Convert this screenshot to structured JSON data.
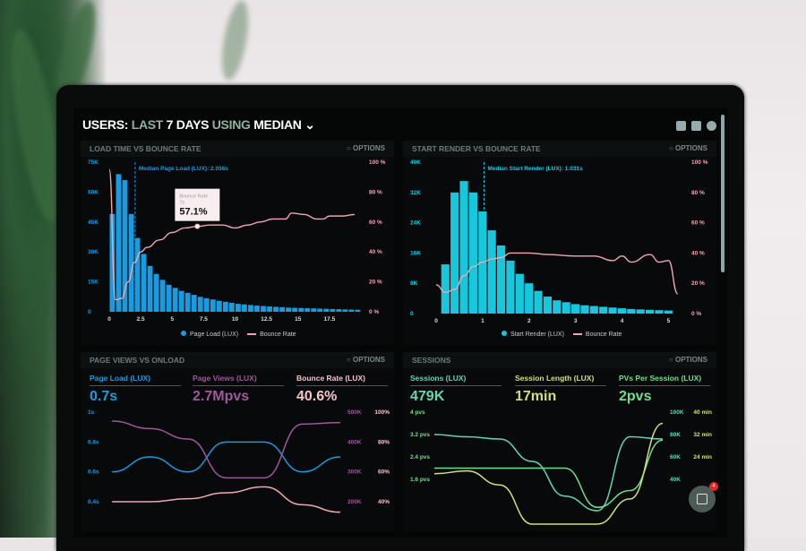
{
  "header": {
    "users": "USERS:",
    "last": "LAST",
    "days": "7 DAYS",
    "using": "USING",
    "median": "MEDIAN",
    "icons": [
      "monitor-icon",
      "chart-icon",
      "help-icon"
    ]
  },
  "options_label": "OPTIONS",
  "colors": {
    "blue": "#1a9be0",
    "cyan": "#17c8dc",
    "pink": "#f1a6b4",
    "purple": "#a0579c",
    "teal": "#63d6b4",
    "green": "#6ee08d",
    "yellow": "#cfe07a"
  },
  "chat": {
    "badge": "4"
  },
  "chart_data": [
    {
      "type": "bar",
      "title": "LOAD TIME VS BOUNCE RATE",
      "annotation": "Median Page Load (LUX): 2.056s",
      "median": 2.056,
      "tooltip": {
        "title": "Bounce Rate",
        "x": "7s",
        "value": "57.1%"
      },
      "xticks": [
        "0",
        "2.5",
        "5",
        "7.5",
        "10",
        "12.5",
        "15",
        "17.5"
      ],
      "xlim": [
        0,
        20
      ],
      "yticks_left": [
        "0",
        "15K",
        "30K",
        "45K",
        "60K",
        "75K"
      ],
      "ylim_left": [
        0,
        75
      ],
      "yticks_right": [
        "0 %",
        "20 %",
        "40 %",
        "60 %",
        "80 %",
        "100 %"
      ],
      "ylim_right": [
        0,
        100
      ],
      "legend": [
        "Page Load (LUX)",
        "Bounce Rate"
      ],
      "bin": 0.5,
      "bars": [
        49,
        69,
        66,
        49,
        37,
        29,
        23,
        19,
        16,
        13.5,
        12,
        10.5,
        9.5,
        8.5,
        7.5,
        6.8,
        6.2,
        5.5,
        5,
        4.5,
        4,
        3.7,
        3.4,
        3.1,
        2.9,
        2.7,
        2.5,
        2.3,
        2.1,
        2,
        1.9,
        1.8,
        1.7,
        1.6,
        1.5,
        1.4,
        1.3,
        1.2,
        1.1,
        1.0
      ],
      "line": [
        [
          0,
          95
        ],
        [
          0.5,
          8
        ],
        [
          1,
          9
        ],
        [
          1.5,
          20
        ],
        [
          2,
          33
        ],
        [
          2.5,
          40
        ],
        [
          3,
          43
        ],
        [
          4,
          48
        ],
        [
          5,
          53
        ],
        [
          6,
          56
        ],
        [
          7,
          57.1
        ],
        [
          8,
          58
        ],
        [
          9,
          58
        ],
        [
          10,
          56
        ],
        [
          11,
          58
        ],
        [
          12,
          60
        ],
        [
          13,
          62
        ],
        [
          14,
          62
        ],
        [
          14.5,
          66
        ],
        [
          15.5,
          65
        ],
        [
          16.5,
          62
        ],
        [
          17,
          62
        ],
        [
          17.5,
          64
        ],
        [
          18.5,
          64
        ],
        [
          19.5,
          65
        ]
      ]
    },
    {
      "type": "bar",
      "title": "START RENDER VS BOUNCE RATE",
      "annotation": "Median Start Render (LUX): 1.031s",
      "median": 1.031,
      "xticks": [
        "0",
        "1",
        "2",
        "3",
        "4",
        "5"
      ],
      "xlim": [
        0,
        5.3
      ],
      "yticks_left": [
        "0",
        "8K",
        "16K",
        "24K",
        "32K",
        "40K"
      ],
      "ylim_left": [
        0,
        40
      ],
      "yticks_right": [
        "0 %",
        "20 %",
        "40 %",
        "60 %",
        "80 %",
        "100 %"
      ],
      "ylim_right": [
        0,
        100
      ],
      "legend": [
        "Start Render (LUX)",
        "Bounce Rate"
      ],
      "bin": 0.2,
      "bars": [
        13,
        32,
        35,
        32,
        27,
        22,
        18,
        14,
        10.5,
        8,
        6,
        4.5,
        3.5,
        3,
        2.5,
        2.2,
        2,
        1.8,
        1.6,
        1.4,
        1.2,
        1.1,
        1,
        0.9,
        0.8
      ],
      "line": [
        [
          0,
          19
        ],
        [
          0.2,
          14
        ],
        [
          0.4,
          16
        ],
        [
          0.6,
          25
        ],
        [
          0.8,
          31
        ],
        [
          1,
          34
        ],
        [
          1.2,
          36
        ],
        [
          1.4,
          37
        ],
        [
          1.6,
          40
        ],
        [
          2,
          40
        ],
        [
          2.4,
          39
        ],
        [
          3,
          38
        ],
        [
          3.4,
          38
        ],
        [
          3.8,
          35
        ],
        [
          4,
          38
        ],
        [
          4.2,
          34
        ],
        [
          4.6,
          39
        ],
        [
          4.8,
          34
        ],
        [
          5,
          35
        ],
        [
          5.2,
          13
        ]
      ]
    },
    {
      "type": "line",
      "title": "PAGE VIEWS VS ONLOAD",
      "kpis": [
        {
          "label": "Page Load (LUX)",
          "value": "0.7s"
        },
        {
          "label": "Page Views (LUX)",
          "value": "2.7Mpvs"
        },
        {
          "label": "Bounce Rate (LUX)",
          "value": "40.6%"
        }
      ],
      "yticks_left": [
        "0.4s",
        "0.6s",
        "0.8s",
        "1s"
      ],
      "ylim_left": [
        0.4,
        1
      ],
      "yticks_right1": [
        "200K",
        "300K",
        "400K",
        "500K"
      ],
      "ylim_right1": [
        200,
        500
      ],
      "yticks_right2": [
        "40%",
        "60%",
        "80%",
        "100%"
      ],
      "ylim_right2": [
        40,
        100
      ],
      "series": [
        {
          "axis": "left",
          "values": [
            0.6,
            0.7,
            0.6,
            0.8,
            0.8,
            0.6,
            0.7
          ]
        },
        {
          "axis": "right1",
          "values": [
            470,
            445,
            410,
            280,
            280,
            460,
            465
          ]
        },
        {
          "axis": "right2",
          "values": [
            40,
            40,
            42,
            46,
            50,
            38,
            33
          ]
        }
      ]
    },
    {
      "type": "line",
      "title": "SESSIONS",
      "kpis": [
        {
          "label": "Sessions (LUX)",
          "value": "479K"
        },
        {
          "label": "Session Length (LUX)",
          "value": "17min"
        },
        {
          "label": "PVs Per Session (LUX)",
          "value": "2pvs"
        }
      ],
      "yticks_left": [
        "1.6 pvs",
        "2.4 pvs",
        "3.2 pvs",
        "4 pvs"
      ],
      "ylim_left": [
        0.8,
        4
      ],
      "yticks_right1": [
        "40K",
        "60K",
        "80K",
        "100K"
      ],
      "ylim_right1": [
        20,
        100
      ],
      "yticks_right2": [
        "24 min",
        "32 min",
        "40 min"
      ],
      "ylim_right2": [
        8,
        40
      ],
      "series": [
        {
          "axis": "right1",
          "values": [
            80,
            78,
            76,
            56,
            25,
            12,
            78,
            76
          ]
        },
        {
          "axis": "left",
          "values": [
            2.0,
            2.0,
            2.0,
            2.0,
            2.0,
            0.6,
            1.2,
            3.0
          ]
        },
        {
          "axis": "right2",
          "values": [
            18,
            19,
            14,
            0,
            0,
            0,
            9,
            36
          ]
        }
      ]
    }
  ]
}
